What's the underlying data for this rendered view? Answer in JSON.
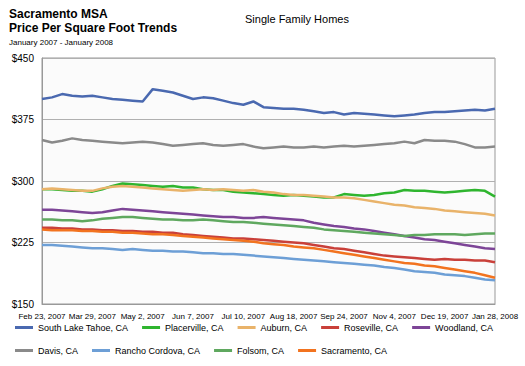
{
  "chart_data": {
    "type": "line",
    "title": "Sacramento MSA\nPrice Per Square Foot Trends",
    "subtitle": "January 2007 - January 2008",
    "annotations": [
      "Single Family Homes"
    ],
    "categories": [
      "Feb 23, 2007",
      null,
      null,
      null,
      null,
      "Mar 29, 2007",
      null,
      null,
      null,
      null,
      "May 2, 2007",
      null,
      null,
      null,
      null,
      "Jun 7, 2007",
      null,
      null,
      null,
      null,
      "Jul 10, 2007",
      null,
      null,
      null,
      null,
      "Aug 18, 2007",
      null,
      null,
      null,
      null,
      "Sep 24, 2007",
      null,
      null,
      null,
      null,
      "Nov 4, 2007",
      null,
      null,
      null,
      null,
      "Dec 19, 2007",
      null,
      null,
      null,
      null,
      "Jan 28, 2008"
    ],
    "series": [
      {
        "name": "South Lake Tahoe, CA",
        "color": "#4a69b0",
        "values": [
          400,
          402,
          406,
          404,
          403,
          404,
          402,
          400,
          399,
          398,
          397,
          412,
          410,
          408,
          404,
          400,
          402,
          401,
          398,
          395,
          393,
          397,
          390,
          389,
          388,
          388,
          387,
          385,
          383,
          384,
          381,
          383,
          382,
          381,
          380,
          379,
          380,
          381,
          383,
          384,
          384,
          385,
          386,
          387,
          386,
          388
        ]
      },
      {
        "name": "Placerville, CA",
        "color": "#2fb52f",
        "values": [
          290,
          290,
          289,
          288,
          288,
          287,
          290,
          294,
          297,
          296,
          295,
          294,
          293,
          294,
          292,
          292,
          290,
          289,
          289,
          287,
          286,
          285,
          284,
          283,
          282,
          283,
          282,
          281,
          280,
          280,
          284,
          283,
          282,
          283,
          285,
          286,
          289,
          288,
          288,
          287,
          286,
          287,
          288,
          289,
          288,
          281
        ]
      },
      {
        "name": "Auburn, CA",
        "color": "#e9b36a",
        "values": [
          290,
          291,
          290,
          289,
          288,
          288,
          291,
          293,
          294,
          293,
          292,
          291,
          290,
          289,
          288,
          289,
          290,
          289,
          290,
          289,
          288,
          289,
          287,
          286,
          284,
          283,
          283,
          282,
          281,
          280,
          280,
          279,
          277,
          275,
          273,
          271,
          270,
          268,
          267,
          266,
          264,
          263,
          262,
          261,
          260,
          258
        ]
      },
      {
        "name": "Roseville, CA",
        "color": "#c9403a",
        "values": [
          243,
          243,
          242,
          242,
          241,
          241,
          240,
          240,
          239,
          239,
          238,
          238,
          237,
          237,
          235,
          234,
          233,
          232,
          231,
          230,
          230,
          229,
          228,
          227,
          226,
          225,
          224,
          222,
          220,
          218,
          217,
          215,
          213,
          211,
          209,
          208,
          207,
          206,
          205,
          204,
          205,
          204,
          204,
          203,
          203,
          201
        ]
      },
      {
        "name": "Woodland, CA",
        "color": "#7d4597",
        "values": [
          265,
          265,
          264,
          263,
          262,
          261,
          262,
          264,
          266,
          265,
          264,
          263,
          262,
          261,
          260,
          259,
          258,
          257,
          256,
          256,
          255,
          255,
          256,
          255,
          254,
          253,
          252,
          249,
          247,
          245,
          244,
          242,
          241,
          239,
          237,
          235,
          233,
          231,
          229,
          228,
          226,
          224,
          222,
          220,
          218,
          217
        ]
      },
      {
        "name": "Davis, CA",
        "color": "#8a8a8a",
        "values": [
          350,
          347,
          349,
          352,
          350,
          349,
          348,
          347,
          346,
          347,
          348,
          347,
          345,
          343,
          344,
          345,
          346,
          344,
          343,
          344,
          345,
          342,
          340,
          341,
          342,
          341,
          341,
          342,
          341,
          342,
          343,
          342,
          343,
          344,
          345,
          346,
          348,
          346,
          350,
          349,
          349,
          348,
          345,
          341,
          341,
          342
        ]
      },
      {
        "name": "Rancho Cordova, CA",
        "color": "#6d9fd6",
        "values": [
          222,
          222,
          221,
          220,
          219,
          218,
          218,
          217,
          216,
          217,
          216,
          215,
          215,
          214,
          214,
          213,
          212,
          212,
          211,
          211,
          210,
          209,
          208,
          207,
          206,
          205,
          204,
          203,
          202,
          201,
          200,
          199,
          198,
          197,
          195,
          194,
          192,
          190,
          189,
          188,
          186,
          185,
          184,
          182,
          180,
          179
        ]
      },
      {
        "name": "Folsom, CA",
        "color": "#5fa85f",
        "values": [
          253,
          253,
          252,
          252,
          251,
          252,
          254,
          255,
          256,
          256,
          255,
          254,
          253,
          253,
          252,
          252,
          253,
          252,
          251,
          250,
          250,
          249,
          248,
          247,
          246,
          245,
          244,
          243,
          241,
          240,
          239,
          238,
          237,
          236,
          235,
          234,
          233,
          234,
          234,
          235,
          235,
          235,
          234,
          235,
          236,
          236
        ]
      },
      {
        "name": "Sacramento, CA",
        "color": "#f2731f",
        "values": [
          241,
          240,
          240,
          240,
          239,
          239,
          238,
          238,
          237,
          237,
          236,
          235,
          235,
          234,
          233,
          232,
          231,
          230,
          229,
          228,
          227,
          226,
          224,
          223,
          222,
          220,
          219,
          218,
          216,
          214,
          212,
          210,
          208,
          206,
          204,
          202,
          200,
          199,
          197,
          196,
          194,
          192,
          190,
          188,
          185,
          182
        ]
      }
    ],
    "ylim": [
      150,
      450
    ],
    "yticks": [
      {
        "value": 150,
        "label": "$150"
      },
      {
        "value": 225,
        "label": "$225"
      },
      {
        "value": 300,
        "label": "$300"
      },
      {
        "value": 375,
        "label": "$375"
      },
      {
        "value": 450,
        "label": "$450"
      }
    ],
    "grid": true,
    "legend": "bottom"
  }
}
